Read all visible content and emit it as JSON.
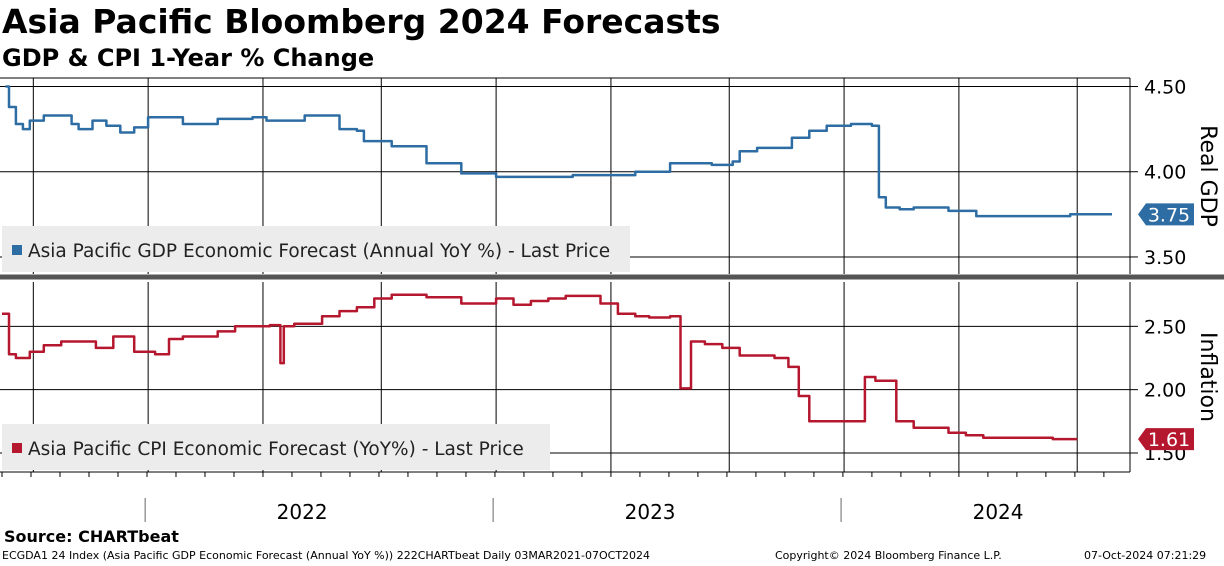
{
  "header": {
    "title": "Asia Pacific Bloomberg 2024 Forecasts",
    "subtitle": "GDP & CPI 1-Year % Change"
  },
  "source": "Source: CHARTbeat",
  "footer": {
    "left": "ECGDA1 24 Index (Asia Pacific GDP Economic Forecast (Annual YoY %)) 222CHARTbeat  Daily 03MAR2021-07OCT2024",
    "center": "Copyright© 2024 Bloomberg Finance L.P.",
    "right": "07-Oct-2024 07:21:29"
  },
  "colors": {
    "gdp": "#2e6da4",
    "cpi": "#b5172e"
  },
  "chart_data": [
    {
      "type": "line",
      "ylabel": "Real GDP",
      "ylim": [
        3.4,
        4.55
      ],
      "yticks": [
        "4.50",
        "4.00",
        "3.50"
      ],
      "grid": true,
      "legend": "bottom-left",
      "series": [
        {
          "name": "Asia Pacific GDP Economic Forecast (Annual YoY %) - Last Price",
          "last_value_label": "3.75",
          "x": [
            2021.59,
            2021.6,
            2021.62,
            2021.64,
            2021.66,
            2021.7,
            2021.78,
            2021.8,
            2021.84,
            2021.88,
            2021.92,
            2021.96,
            2022.0,
            2022.1,
            2022.2,
            2022.3,
            2022.34,
            2022.45,
            2022.55,
            2022.6,
            2022.62,
            2022.7,
            2022.8,
            2022.9,
            2023.0,
            2023.1,
            2023.13,
            2023.18,
            2023.22,
            2023.25,
            2023.3,
            2023.4,
            2023.5,
            2023.55,
            2023.62,
            2023.68,
            2023.7,
            2023.75,
            2023.85,
            2023.9,
            2023.95,
            2024.0,
            2024.02,
            2024.05,
            2024.08,
            2024.1,
            2024.12,
            2024.16,
            2024.2,
            2024.3,
            2024.38,
            2024.4,
            2024.5,
            2024.55,
            2024.65,
            2024.7,
            2024.77
          ],
          "y": [
            4.5,
            4.38,
            4.28,
            4.25,
            4.3,
            4.33,
            4.28,
            4.25,
            4.3,
            4.27,
            4.23,
            4.26,
            4.32,
            4.28,
            4.31,
            4.32,
            4.3,
            4.33,
            4.25,
            4.24,
            4.18,
            4.15,
            4.05,
            3.99,
            3.97,
            3.97,
            3.97,
            3.97,
            3.98,
            3.98,
            3.98,
            4.0,
            4.05,
            4.05,
            4.04,
            4.06,
            4.12,
            4.14,
            4.2,
            4.24,
            4.27,
            4.27,
            4.28,
            4.28,
            4.27,
            3.85,
            3.79,
            3.78,
            3.79,
            3.77,
            3.74,
            3.74,
            3.74,
            3.74,
            3.75,
            3.75,
            3.75
          ]
        }
      ]
    },
    {
      "type": "line",
      "ylabel": "Inflation",
      "ylim": [
        1.35,
        2.85
      ],
      "yticks": [
        "2.50",
        "2.00",
        "1.50"
      ],
      "grid": true,
      "legend": "bottom-left",
      "series": [
        {
          "name": "Asia Pacific CPI Economic Forecast (YoY%) - Last Price",
          "last_value_label": "1.61",
          "x": [
            2021.58,
            2021.6,
            2021.62,
            2021.66,
            2021.7,
            2021.75,
            2021.85,
            2021.9,
            2021.96,
            2022.02,
            2022.06,
            2022.1,
            2022.2,
            2022.25,
            2022.35,
            2022.38,
            2022.39,
            2022.42,
            2022.5,
            2022.55,
            2022.6,
            2022.65,
            2022.7,
            2022.75,
            2022.8,
            2022.9,
            2023.0,
            2023.05,
            2023.1,
            2023.15,
            2023.2,
            2023.3,
            2023.35,
            2023.4,
            2023.44,
            2023.5,
            2023.53,
            2023.55,
            2023.56,
            2023.6,
            2023.65,
            2023.7,
            2023.8,
            2023.84,
            2023.87,
            2023.9,
            2023.98,
            2024.0,
            2024.06,
            2024.08,
            2024.09,
            2024.11,
            2024.15,
            2024.2,
            2024.3,
            2024.35,
            2024.4,
            2024.5,
            2024.6,
            2024.67
          ],
          "y": [
            2.6,
            2.28,
            2.25,
            2.3,
            2.35,
            2.38,
            2.33,
            2.42,
            2.3,
            2.28,
            2.4,
            2.42,
            2.46,
            2.5,
            2.51,
            2.21,
            2.5,
            2.52,
            2.58,
            2.62,
            2.65,
            2.72,
            2.75,
            2.75,
            2.73,
            2.68,
            2.72,
            2.67,
            2.7,
            2.72,
            2.74,
            2.68,
            2.6,
            2.58,
            2.57,
            2.58,
            2.01,
            2.01,
            2.38,
            2.36,
            2.33,
            2.27,
            2.25,
            2.18,
            1.95,
            1.75,
            1.75,
            1.75,
            2.1,
            2.1,
            2.07,
            2.07,
            1.75,
            1.7,
            1.66,
            1.64,
            1.62,
            1.62,
            1.61,
            1.61
          ]
        }
      ]
    }
  ],
  "x_axis": {
    "range": [
      2021.58,
      2024.77
    ],
    "year_labels": [
      {
        "label": "2022",
        "x": 2022.5
      },
      {
        "label": "2023",
        "x": 2023.5
      },
      {
        "label": "2024",
        "x": 2024.5
      }
    ],
    "gridlines": [
      2021.67,
      2022.0,
      2022.33,
      2022.67,
      2023.0,
      2023.33,
      2023.67,
      2024.0,
      2024.33,
      2024.67
    ],
    "year_boundaries": [
      2022.0,
      2023.0,
      2024.0
    ]
  }
}
